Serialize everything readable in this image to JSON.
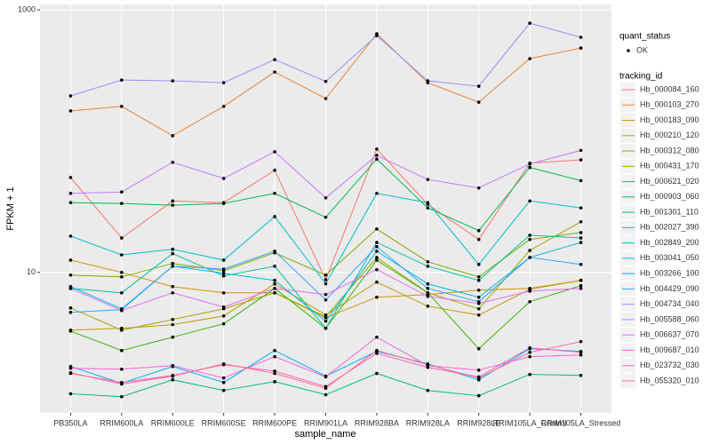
{
  "chart_data": {
    "type": "line",
    "log_y": true,
    "grid": true,
    "xlabel": "sample_name",
    "ylabel": "FPKM + 1",
    "categories": [
      "PB350LA",
      "RRIM600LA",
      "RRIM600LE",
      "RRIM600SE",
      "RRIM600PE",
      "RRIM901LA",
      "RRIM928BA",
      "RRIM928LA",
      "RRIM928LE",
      "RRIM105LA_Control",
      "RRIM105LA_Stressed"
    ],
    "ylim": [
      0.85,
      1100
    ],
    "yticks": [
      10,
      1000
    ],
    "point_legend": {
      "title": "quant_status",
      "labels": [
        "OK"
      ]
    },
    "legend_title": "tracking_id",
    "series": [
      {
        "name": "Hb_000084_160",
        "color": "#F8766D",
        "values": [
          52.8,
          18.3,
          35,
          34,
          60,
          8.8,
          87,
          33,
          17.8,
          68,
          72
        ]
      },
      {
        "name": "Hb_000103_270",
        "color": "#EA8331",
        "values": [
          170,
          184,
          110,
          184,
          336,
          211,
          657,
          279,
          198,
          425,
          512
        ]
      },
      {
        "name": "Hb_000183_090",
        "color": "#D89000",
        "values": [
          12.4,
          10.0,
          7.8,
          6.99,
          6.99,
          4.52,
          6.47,
          6.78,
          7.32,
          7.55,
          8.7
        ]
      },
      {
        "name": "Hb_000210_120",
        "color": "#C09B00",
        "values": [
          3.63,
          3.75,
          4.0,
          4.66,
          8.17,
          4.73,
          8.43,
          5.53,
          4.73,
          7.43,
          8.7
        ]
      },
      {
        "name": "Hb_000312_080",
        "color": "#A3A500",
        "values": [
          5.36,
          3.63,
          4.38,
          5.28,
          6.99,
          4.59,
          13.0,
          6.99,
          5.28,
          14.7,
          24.3
        ]
      },
      {
        "name": "Hb_000431_170",
        "color": "#7CAE00",
        "values": [
          9.54,
          9.25,
          11.7,
          10.3,
          14.1,
          9.54,
          21.4,
          12.05,
          9.25,
          17.8,
          20.1
        ]
      },
      {
        "name": "Hb_000621_020",
        "color": "#39B600",
        "values": [
          3.57,
          2.54,
          3.21,
          4.06,
          7.55,
          3.75,
          12.4,
          6.99,
          2.62,
          5.98,
          7.92
        ]
      },
      {
        "name": "Hb_000903_060",
        "color": "#00BB4E",
        "values": [
          34,
          33.5,
          32.5,
          33.5,
          40,
          26.3,
          73,
          31,
          20.8,
          63,
          50
        ]
      },
      {
        "name": "Hb_001301_110",
        "color": "#00BF7D",
        "values": [
          1.19,
          1.13,
          1.52,
          1.26,
          1.47,
          1.17,
          1.7,
          1.26,
          1.15,
          1.67,
          1.64
        ]
      },
      {
        "name": "Hb_002027_390",
        "color": "#00C1A3",
        "values": [
          7.55,
          6.99,
          13.9,
          9.4,
          11.15,
          3.75,
          16.9,
          11.15,
          8.7,
          19.2,
          18.3
        ]
      },
      {
        "name": "Hb_002849_200",
        "color": "#00BFC4",
        "values": [
          18.9,
          13.6,
          15,
          12.4,
          26.6,
          8.2,
          40,
          34,
          11.5,
          35,
          31
        ]
      },
      {
        "name": "Hb_003041_050",
        "color": "#00BAE0",
        "values": [
          7.8,
          5.28,
          11.15,
          9.84,
          8.7,
          4.25,
          14.5,
          8.17,
          6.47,
          13.0,
          16.9
        ]
      },
      {
        "name": "Hb_003266_100",
        "color": "#00B0F6",
        "values": [
          1.92,
          1.43,
          1.92,
          1.45,
          2.54,
          1.62,
          2.5,
          2.01,
          1.52,
          2.62,
          2.5
        ]
      },
      {
        "name": "Hb_004429_090",
        "color": "#35A2FF",
        "values": [
          4.96,
          5.2,
          11.15,
          10.6,
          14.5,
          6.17,
          15.7,
          7.55,
          5.98,
          13.0,
          11.5
        ]
      },
      {
        "name": "Hb_004734_040",
        "color": "#9590FF",
        "values": [
          221,
          292,
          288,
          279,
          418,
          285,
          637,
          288,
          262,
          792,
          618
        ]
      },
      {
        "name": "Hb_005588_060",
        "color": "#C77CFF",
        "values": [
          40,
          41,
          69,
          52,
          83,
          37,
          78,
          51,
          44,
          67,
          85
        ]
      },
      {
        "name": "Hb_006637_070",
        "color": "#E76BF3",
        "values": [
          7.55,
          5.12,
          6.99,
          5.44,
          7.55,
          6.78,
          10.5,
          6.57,
          5.8,
          7.2,
          7.55
        ]
      },
      {
        "name": "Hb_009687_010",
        "color": "#FA62DB",
        "values": [
          1.86,
          1.83,
          1.95,
          1.57,
          2.28,
          1.6,
          3.21,
          1.95,
          1.8,
          2.28,
          2.35
        ]
      },
      {
        "name": "Hb_023732_030",
        "color": "#FF62BC",
        "values": [
          1.7,
          1.45,
          1.64,
          1.98,
          1.77,
          1.35,
          2.42,
          1.89,
          1.6,
          2.66,
          2.46
        ]
      },
      {
        "name": "Hb_055320_010",
        "color": "#FF6C91",
        "values": [
          1.72,
          1.41,
          1.62,
          2.01,
          1.7,
          1.31,
          2.54,
          1.98,
          1.57,
          2.46,
          2.97
        ]
      }
    ]
  }
}
